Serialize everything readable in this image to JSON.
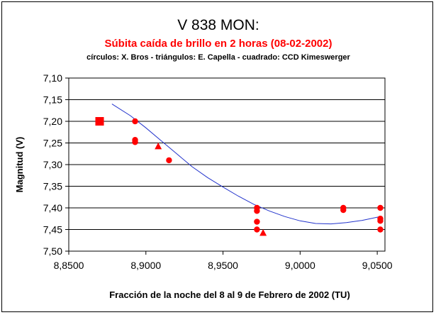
{
  "colors": {
    "marker": "#ff0000",
    "trend": "#2233cc",
    "grid": "#000000",
    "subtitle": "#ff0000"
  },
  "chart_data": {
    "type": "scatter",
    "title": "V 838 MON:",
    "subtitle": "Súbita caída de brillo en 2 horas (08-02-2002)",
    "note": "círculos: X. Bros - triángulos: E. Capella - cuadrado: CCD Kimeswerger",
    "xlabel": "Fracción de la noche del 8 al 9 de Febrero de 2002 (TU)",
    "ylabel": "Magnitud (V)",
    "xlim": [
      8.85,
      9.055
    ],
    "ylim": [
      7.1,
      7.5
    ],
    "y_inverted": true,
    "x_ticks": [
      "8,8500",
      "8,9000",
      "8,9500",
      "9,0000",
      "9,0500"
    ],
    "x_tick_values": [
      8.85,
      8.9,
      8.95,
      9.0,
      9.05
    ],
    "y_ticks": [
      "7,10",
      "7,15",
      "7,20",
      "7,25",
      "7,30",
      "7,35",
      "7,40",
      "7,45",
      "7,50"
    ],
    "y_tick_values": [
      7.1,
      7.15,
      7.2,
      7.25,
      7.3,
      7.35,
      7.4,
      7.45,
      7.5
    ],
    "grid": "horizontal",
    "legend": "none",
    "series": [
      {
        "marker": "circle",
        "x": [
          8.893,
          8.893,
          8.893,
          8.915,
          8.972,
          8.972,
          8.972,
          8.972,
          9.028,
          9.028,
          9.052,
          9.052,
          9.052,
          9.052
        ],
        "y": [
          7.2,
          7.243,
          7.248,
          7.29,
          7.4,
          7.407,
          7.432,
          7.45,
          7.4,
          7.405,
          7.4,
          7.425,
          7.43,
          7.45
        ]
      },
      {
        "marker": "triangle",
        "x": [
          8.908,
          8.976
        ],
        "y": [
          7.258,
          7.458
        ]
      },
      {
        "marker": "square",
        "x": [
          8.87
        ],
        "y": [
          7.2
        ]
      }
    ],
    "trendline": {
      "type": "polynomial",
      "x": [
        8.878,
        8.89,
        8.9,
        8.91,
        8.92,
        8.93,
        8.94,
        8.95,
        8.96,
        8.97,
        8.98,
        8.99,
        9.0,
        9.01,
        9.02,
        9.03,
        9.04,
        9.052
      ],
      "y": [
        7.16,
        7.187,
        7.215,
        7.245,
        7.275,
        7.305,
        7.33,
        7.352,
        7.373,
        7.392,
        7.407,
        7.42,
        7.43,
        7.436,
        7.437,
        7.434,
        7.429,
        7.42
      ]
    }
  }
}
